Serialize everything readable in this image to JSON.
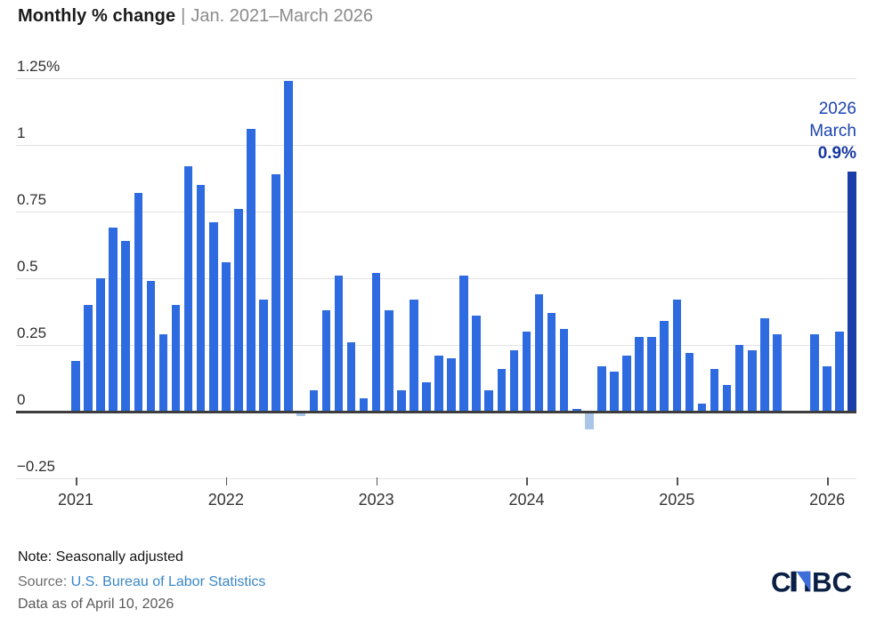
{
  "header": {
    "title": "Monthly % change",
    "separator": "|",
    "subtitle": "Jan. 2021–March 2026"
  },
  "chart_data": {
    "type": "bar",
    "title": "Monthly % change",
    "date_range": "Jan. 2021–March 2026",
    "unit": "percent",
    "categories": [
      "Jan 2021",
      "Feb 2021",
      "Mar 2021",
      "Apr 2021",
      "May 2021",
      "Jun 2021",
      "Jul 2021",
      "Aug 2021",
      "Sep 2021",
      "Oct 2021",
      "Nov 2021",
      "Dec 2021",
      "Jan 2022",
      "Feb 2022",
      "Mar 2022",
      "Apr 2022",
      "May 2022",
      "Jun 2022",
      "Jul 2022",
      "Aug 2022",
      "Sep 2022",
      "Oct 2022",
      "Nov 2022",
      "Dec 2022",
      "Jan 2023",
      "Feb 2023",
      "Mar 2023",
      "Apr 2023",
      "May 2023",
      "Jun 2023",
      "Jul 2023",
      "Aug 2023",
      "Sep 2023",
      "Oct 2023",
      "Nov 2023",
      "Dec 2023",
      "Jan 2024",
      "Feb 2024",
      "Mar 2024",
      "Apr 2024",
      "May 2024",
      "Jun 2024",
      "Jul 2024",
      "Aug 2024",
      "Sep 2024",
      "Oct 2024",
      "Nov 2024",
      "Dec 2024",
      "Jan 2025",
      "Feb 2025",
      "Mar 2025",
      "Apr 2025",
      "May 2025",
      "Jun 2025",
      "Jul 2025",
      "Aug 2025",
      "Sep 2025",
      "Oct 2025",
      "Nov 2025",
      "Dec 2025",
      "Jan 2026",
      "Feb 2026",
      "Mar 2026"
    ],
    "values": [
      0.19,
      0.4,
      0.5,
      0.69,
      0.64,
      0.82,
      0.49,
      0.29,
      0.4,
      0.92,
      0.85,
      0.71,
      0.56,
      0.76,
      1.06,
      0.42,
      0.89,
      1.24,
      -0.01,
      0.08,
      0.38,
      0.51,
      0.26,
      0.05,
      0.52,
      0.38,
      0.08,
      0.42,
      0.11,
      0.21,
      0.2,
      0.51,
      0.36,
      0.08,
      0.16,
      0.23,
      0.3,
      0.44,
      0.37,
      0.31,
      0.01,
      -0.06,
      0.17,
      0.15,
      0.21,
      0.28,
      0.28,
      0.34,
      0.42,
      0.22,
      0.03,
      0.16,
      0.1,
      0.25,
      0.23,
      0.35,
      0.29,
      null,
      null,
      0.29,
      0.17,
      0.3,
      0.9
    ],
    "y_ticks": [
      1.25,
      1,
      0.75,
      0.5,
      0.25,
      0,
      -0.25
    ],
    "y_tick_labels": [
      "1.25%",
      "1",
      "0.75",
      "0.5",
      "0.25",
      "0",
      "−0.25"
    ],
    "ylim": [
      -0.25,
      1.25
    ],
    "grid": true,
    "x_ticks": [
      {
        "index": 0,
        "label": "2021"
      },
      {
        "index": 12,
        "label": "2022"
      },
      {
        "index": 24,
        "label": "2023"
      },
      {
        "index": 36,
        "label": "2024"
      },
      {
        "index": 48,
        "label": "2025"
      },
      {
        "index": 60,
        "label": "2026"
      }
    ],
    "missing_months": [
      "Oct 2025",
      "Nov 2025"
    ],
    "highlight": {
      "category": "Mar 2026",
      "value": 0.9,
      "label": "2026 March 0.9%"
    }
  },
  "annotation": {
    "year": "2026",
    "month": "March",
    "value": "0.9%"
  },
  "footer": {
    "note": "Note: Seasonally adjusted",
    "source_label": "Source:",
    "source_link": "U.S. Bureau of Labor Statistics",
    "data_as_of": "Data as of April 10, 2026"
  },
  "logo": {
    "text": "CNBC"
  },
  "colors": {
    "bar": "#2f6be0",
    "highlight_bar": "#1b3da8",
    "negative_bar": "#a9c6e8",
    "annotation_text": "#1c43b0",
    "gridline": "#e3e3e3",
    "zero_line": "#3d3d3d",
    "link": "#3a87c8",
    "logo_navy": "#0a1f44",
    "logo_blue": "#3e6fd9"
  }
}
